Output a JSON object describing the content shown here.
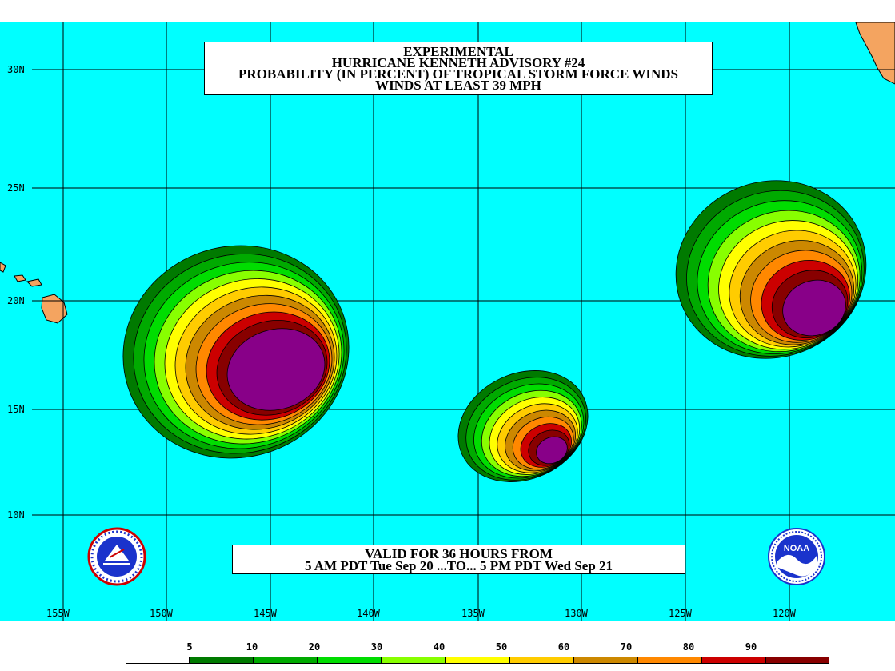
{
  "title": {
    "line1": "EXPERIMENTAL",
    "line2": "HURRICANE KENNETH ADVISORY #24",
    "line3": "PROBABILITY (IN PERCENT) OF TROPICAL STORM FORCE WINDS",
    "line4": "WINDS AT LEAST 39 MPH"
  },
  "valid": {
    "line1": "VALID FOR 36 HOURS FROM",
    "line2": "5 AM PDT Tue Sep 20 ...TO... 5 PM PDT Wed Sep 21"
  },
  "lat_labels": [
    "30N",
    "25N",
    "20N",
    "15N",
    "10N"
  ],
  "lon_labels": [
    "155W",
    "150W",
    "145W",
    "140W",
    "135W",
    "130W",
    "125W",
    "120W"
  ],
  "legend": {
    "labels": [
      "5",
      "10",
      "20",
      "30",
      "40",
      "50",
      "60",
      "70",
      "80",
      "90"
    ],
    "colors": [
      "#ffffff",
      "#007a00",
      "#00aa00",
      "#00dd00",
      "#88ff00",
      "#ffff00",
      "#ffcc00",
      "#cc8800",
      "#ff8800",
      "#cc0000",
      "#880000",
      "#880088"
    ]
  },
  "colors": {
    "ocean": "#00ffff",
    "land": "#f4a460",
    "probability_levels": [
      "#007a00",
      "#00aa00",
      "#00dd00",
      "#88ff00",
      "#ffff00",
      "#ffcc00",
      "#cc8800",
      "#ff8800",
      "#cc0000",
      "#880000",
      "#880088"
    ]
  },
  "logos": {
    "left": "nws-logo-icon",
    "right": "noaa-logo-icon"
  }
}
